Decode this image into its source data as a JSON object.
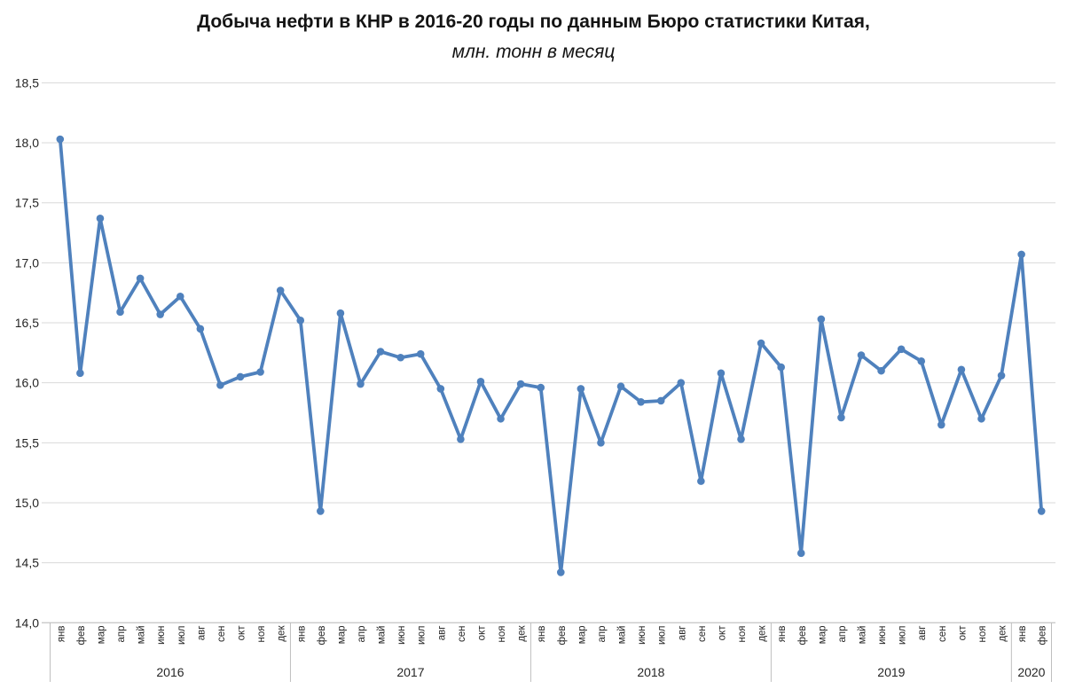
{
  "chart_data": {
    "type": "line",
    "title": "Добыча нефти в КНР в 2016-20 годы по данным Бюро статистики Китая,",
    "subtitle": "млн. тонн в месяц",
    "xlabel": "",
    "ylabel": "",
    "ylim": [
      14.0,
      18.5
    ],
    "ytick_step": 0.5,
    "ytick_labels": [
      "18,5",
      "18,0",
      "17,5",
      "17,0",
      "16,5",
      "16,0",
      "15,5",
      "15,0",
      "14,5",
      "14,0"
    ],
    "grid": true,
    "legend": "none",
    "month_labels": [
      "янв",
      "фев",
      "мар",
      "апр",
      "май",
      "июн",
      "июл",
      "авг",
      "сен",
      "окт",
      "ноя",
      "дек"
    ],
    "years": [
      {
        "year": "2016",
        "values": [
          18.03,
          16.08,
          17.37,
          16.59,
          16.87,
          16.57,
          16.72,
          16.45,
          15.98,
          16.05,
          16.09,
          16.77
        ]
      },
      {
        "year": "2017",
        "values": [
          16.52,
          14.93,
          16.58,
          15.99,
          16.26,
          16.21,
          16.24,
          15.95,
          15.53,
          16.01,
          15.7,
          15.99
        ]
      },
      {
        "year": "2018",
        "values": [
          15.96,
          14.42,
          15.95,
          15.5,
          15.97,
          15.84,
          15.85,
          16.0,
          15.18,
          16.08,
          15.53,
          16.33
        ]
      },
      {
        "year": "2019",
        "values": [
          16.13,
          14.58,
          16.53,
          15.71,
          16.23,
          16.1,
          16.28,
          16.18,
          15.65,
          16.11,
          15.7,
          16.06
        ]
      },
      {
        "year": "2020",
        "values": [
          17.07,
          14.93
        ]
      }
    ],
    "colors": {
      "line": "#4F81BD",
      "marker": "#4F81BD",
      "gridline": "#D9D9D9",
      "axis": "#BFBFBF",
      "tick_text": "#262626",
      "title_text": "#141414"
    }
  }
}
